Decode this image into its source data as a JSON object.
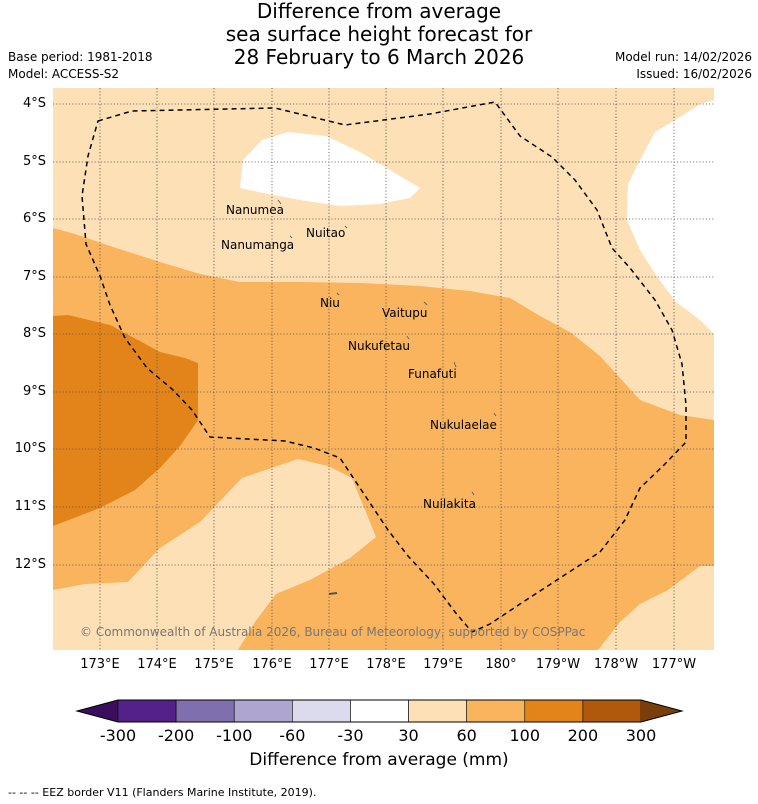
{
  "title": {
    "line1": "Difference from average",
    "line2": "sea surface height forecast for",
    "line3": "28 February to 6 March 2026"
  },
  "meta": {
    "base_period": "Base period: 1981-2018",
    "model": "Model: ACCESS-S2",
    "model_run": "Model run: 14/02/2026",
    "issued": "Issued: 16/02/2026"
  },
  "axes": {
    "lat_labels": [
      "4°S",
      "5°S",
      "6°S",
      "7°S",
      "8°S",
      "9°S",
      "10°S",
      "11°S",
      "12°S"
    ],
    "lon_labels": [
      "173°E",
      "174°E",
      "175°E",
      "176°E",
      "177°E",
      "178°E",
      "179°E",
      "180°",
      "179°W",
      "178°W",
      "177°W"
    ]
  },
  "places": [
    {
      "name": "Nanumea"
    },
    {
      "name": "Nuitao"
    },
    {
      "name": "Nanumanga"
    },
    {
      "name": "Niu"
    },
    {
      "name": "Vaitupu"
    },
    {
      "name": "Nukufetau"
    },
    {
      "name": "Funafuti"
    },
    {
      "name": "Nukulaelae"
    },
    {
      "name": "Nuilakita"
    }
  ],
  "credit": "© Commonwealth of Australia 2026, Bureau of Meteorology, supported by COSPPac",
  "colorbar": {
    "colors": [
      "#3a0e5c",
      "#54218a",
      "#7f6fae",
      "#aea6d0",
      "#dcdaed",
      "#ffffff",
      "#fde0b5",
      "#fab45e",
      "#e3841a",
      "#b0580b",
      "#7a3e0b"
    ],
    "ticks": [
      "-300",
      "-200",
      "-100",
      "-60",
      "-30",
      "30",
      "60",
      "100",
      "200",
      "300"
    ],
    "title": "Difference from average (mm)"
  },
  "footer": "--  --  -- EEZ border V11 (Flanders Marine Institute, 2019)."
}
